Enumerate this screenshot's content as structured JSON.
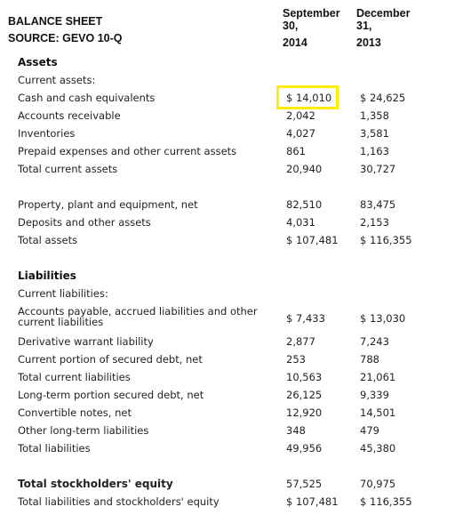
{
  "header": {
    "title_line1": "BALANCE SHEET",
    "title_line2": "SOURCE: GEVO 10-Q",
    "col1_month": "September",
    "col1_day": "30,",
    "col1_year": "2014",
    "col2_month": "December",
    "col2_day": "31,",
    "col2_year": "2013"
  },
  "sections": {
    "assets": "Assets",
    "liabilities": "Liabilities"
  },
  "rows": {
    "current_assets": {
      "label": "Current assets:"
    },
    "cash": {
      "label": "Cash and cash equivalents",
      "v1": "$ 14,010",
      "v2": "$ 24,625"
    },
    "ar": {
      "label": "Accounts receivable",
      "v1": "2,042",
      "v2": "1,358"
    },
    "inventories": {
      "label": "Inventories",
      "v1": "4,027",
      "v2": "3,581"
    },
    "prepaid": {
      "label": "Prepaid expenses and other current assets",
      "v1": "861",
      "v2": "1,163"
    },
    "total_current_assets": {
      "label": "Total current assets",
      "v1": "20,940",
      "v2": "30,727"
    },
    "ppe": {
      "label": "Property, plant and equipment, net",
      "v1": "82,510",
      "v2": "83,475"
    },
    "deposits": {
      "label": "Deposits and other assets",
      "v1": "4,031",
      "v2": "2,153"
    },
    "total_assets": {
      "label": "Total assets",
      "v1": "$ 107,481",
      "v2": "$ 116,355"
    },
    "current_liabilities": {
      "label": "Current liabilities:"
    },
    "ap": {
      "label": "Accounts payable, accrued liabilities and other current liabilities",
      "v1": "$ 7,433",
      "v2": "$ 13,030"
    },
    "derivative": {
      "label": "Derivative warrant liability",
      "v1": "2,877",
      "v2": "7,243"
    },
    "current_secured": {
      "label": "Current portion of secured debt, net",
      "v1": "253",
      "v2": "788"
    },
    "total_current_liabilities": {
      "label": "Total current liabilities",
      "v1": "10,563",
      "v2": "21,061"
    },
    "lt_secured": {
      "label": "Long-term portion secured debt, net",
      "v1": "26,125",
      "v2": "9,339"
    },
    "convertible": {
      "label": "Convertible notes, net",
      "v1": "12,920",
      "v2": "14,501"
    },
    "other_lt": {
      "label": "Other long-term liabilities",
      "v1": "348",
      "v2": "479"
    },
    "total_liabilities": {
      "label": "Total liabilities",
      "v1": "49,956",
      "v2": "45,380"
    },
    "total_equity": {
      "label": "Total stockholders' equity",
      "v1": "57,525",
      "v2": "70,975"
    },
    "total_liab_equity": {
      "label": "Total liabilities and stockholders' equity",
      "v1": "$ 107,481",
      "v2": "$ 116,355"
    }
  },
  "highlight_color": "#ffee00"
}
